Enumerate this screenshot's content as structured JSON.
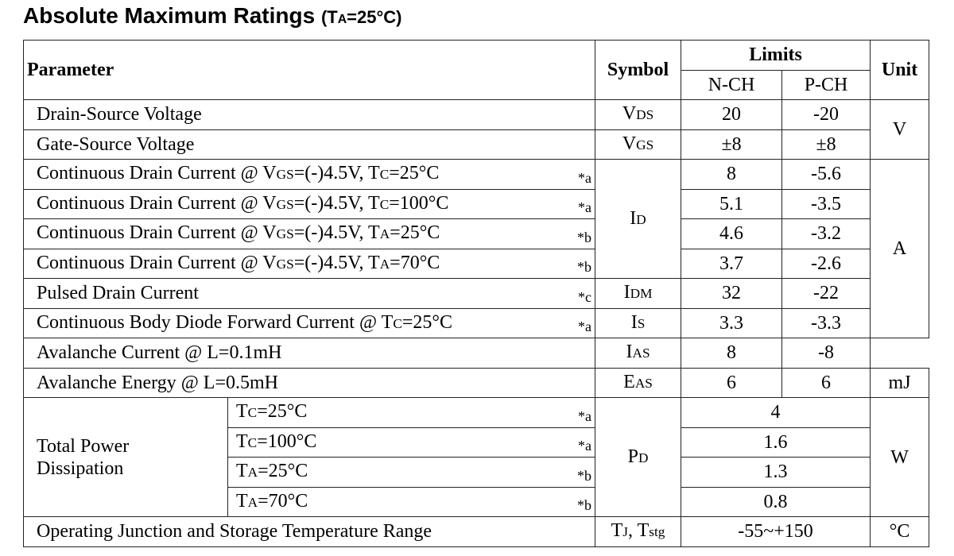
{
  "title": {
    "main": "Absolute Maximum Ratings",
    "condition_open": "(T",
    "condition_sub": "A",
    "condition_rest": "=25°C)"
  },
  "header": {
    "parameter": "Parameter",
    "symbol": "Symbol",
    "limits": "Limits",
    "nch": "N-CH",
    "pch": "P-CH",
    "unit": "Unit"
  },
  "rows": [
    {
      "param": "Drain-Source Voltage",
      "note": "",
      "sym": "V",
      "sym_sub": "DS",
      "n": "20",
      "p": "-20"
    },
    {
      "param": "Gate-Source Voltage",
      "note": "",
      "sym": "V",
      "sym_sub": "GS",
      "n": "±8",
      "p": "±8"
    },
    {
      "p1": "Continuous Drain Current @ V",
      "p1_sub": "GS",
      "p2": "=(-)4.5V, T",
      "p2_sub": "C",
      "p3": "=25°C",
      "note": "*a",
      "n": "8",
      "p": "-5.6"
    },
    {
      "p1": "Continuous Drain Current @ V",
      "p1_sub": "GS",
      "p2": "=(-)4.5V, T",
      "p2_sub": "C",
      "p3": "=100°C",
      "note": "*a",
      "n": "5.1",
      "p": "-3.5"
    },
    {
      "p1": "Continuous Drain Current @ V",
      "p1_sub": "GS",
      "p2": "=(-)4.5V, T",
      "p2_sub": "A",
      "p3": "=25°C",
      "note": "*b",
      "n": "4.6",
      "p": "-3.2"
    },
    {
      "p1": "Continuous Drain Current @ V",
      "p1_sub": "GS",
      "p2": "=(-)4.5V, T",
      "p2_sub": "A",
      "p3": "=70°C",
      "note": "*b",
      "n": "3.7",
      "p": "-2.6"
    },
    {
      "param": "Pulsed Drain Current",
      "note": "*c",
      "sym": "I",
      "sym_sub": "DM",
      "n": "32",
      "p": "-22"
    },
    {
      "p1": "Continuous Body Diode Forward Current @ T",
      "p1_sub": "C",
      "p3": "=25°C",
      "note": "*a",
      "sym": "I",
      "sym_sub": "S",
      "n": "3.3",
      "p": "-3.3"
    },
    {
      "param": "Avalanche Current @ L=0.1mH",
      "note": "",
      "sym": "I",
      "sym_sub": "AS",
      "n": "8",
      "p": "-8"
    },
    {
      "param": "Avalanche Energy @ L=0.5mH",
      "note": "",
      "sym": "E",
      "sym_sub": "AS",
      "n": "6",
      "p": "6"
    }
  ],
  "id_symbol": {
    "sym": "I",
    "sym_sub": "D"
  },
  "units": {
    "v": "V",
    "a": "A",
    "mj": "mJ",
    "w": "W",
    "c": "°C"
  },
  "power": {
    "label_line1": "Total Power",
    "label_line2": "Dissipation",
    "sym": "P",
    "sym_sub": "D",
    "rows": [
      {
        "t": "T",
        "t_sub": "C",
        "t_rest": "=25°C",
        "note": "*a",
        "value": "4"
      },
      {
        "t": "T",
        "t_sub": "C",
        "t_rest": "=100°C",
        "note": "*a",
        "value": "1.6"
      },
      {
        "t": "T",
        "t_sub": "A",
        "t_rest": "=25°C",
        "note": "*b",
        "value": "1.3"
      },
      {
        "t": "T",
        "t_sub": "A",
        "t_rest": "=70°C",
        "note": "*b",
        "value": "0.8"
      }
    ]
  },
  "temp": {
    "param": "Operating Junction and Storage Temperature Range",
    "sym1": "T",
    "sym1_sub": "J",
    "sym_sep": ", T",
    "sym2_sub": "stg",
    "value": "-55~+150"
  }
}
